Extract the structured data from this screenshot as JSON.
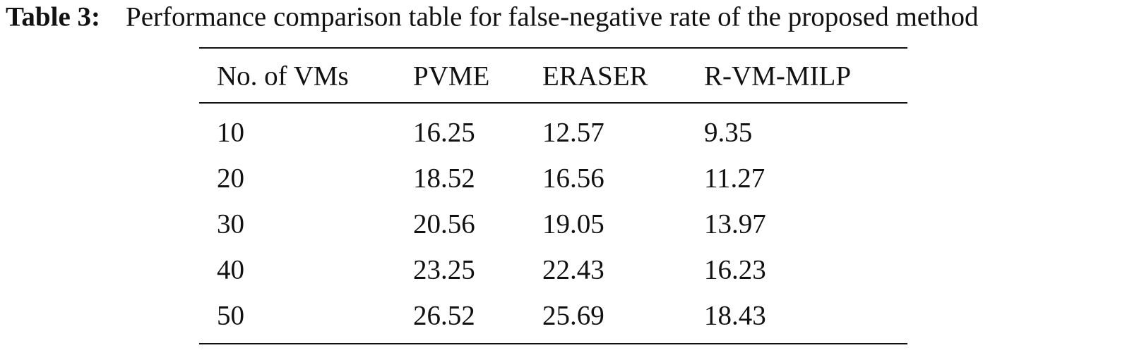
{
  "caption": {
    "label": "Table 3:",
    "text": "Performance comparison table for false-negative rate of the proposed method"
  },
  "table": {
    "header": [
      "No. of VMs",
      "PVME",
      "ERASER",
      "R-VM-MILP"
    ],
    "rows": [
      [
        10,
        16.25,
        12.57,
        9.35
      ],
      [
        20,
        18.52,
        16.56,
        11.27
      ],
      [
        30,
        20.56,
        19.05,
        13.97
      ],
      [
        40,
        23.25,
        22.43,
        16.23
      ],
      [
        50,
        26.52,
        25.69,
        18.43
      ]
    ]
  }
}
